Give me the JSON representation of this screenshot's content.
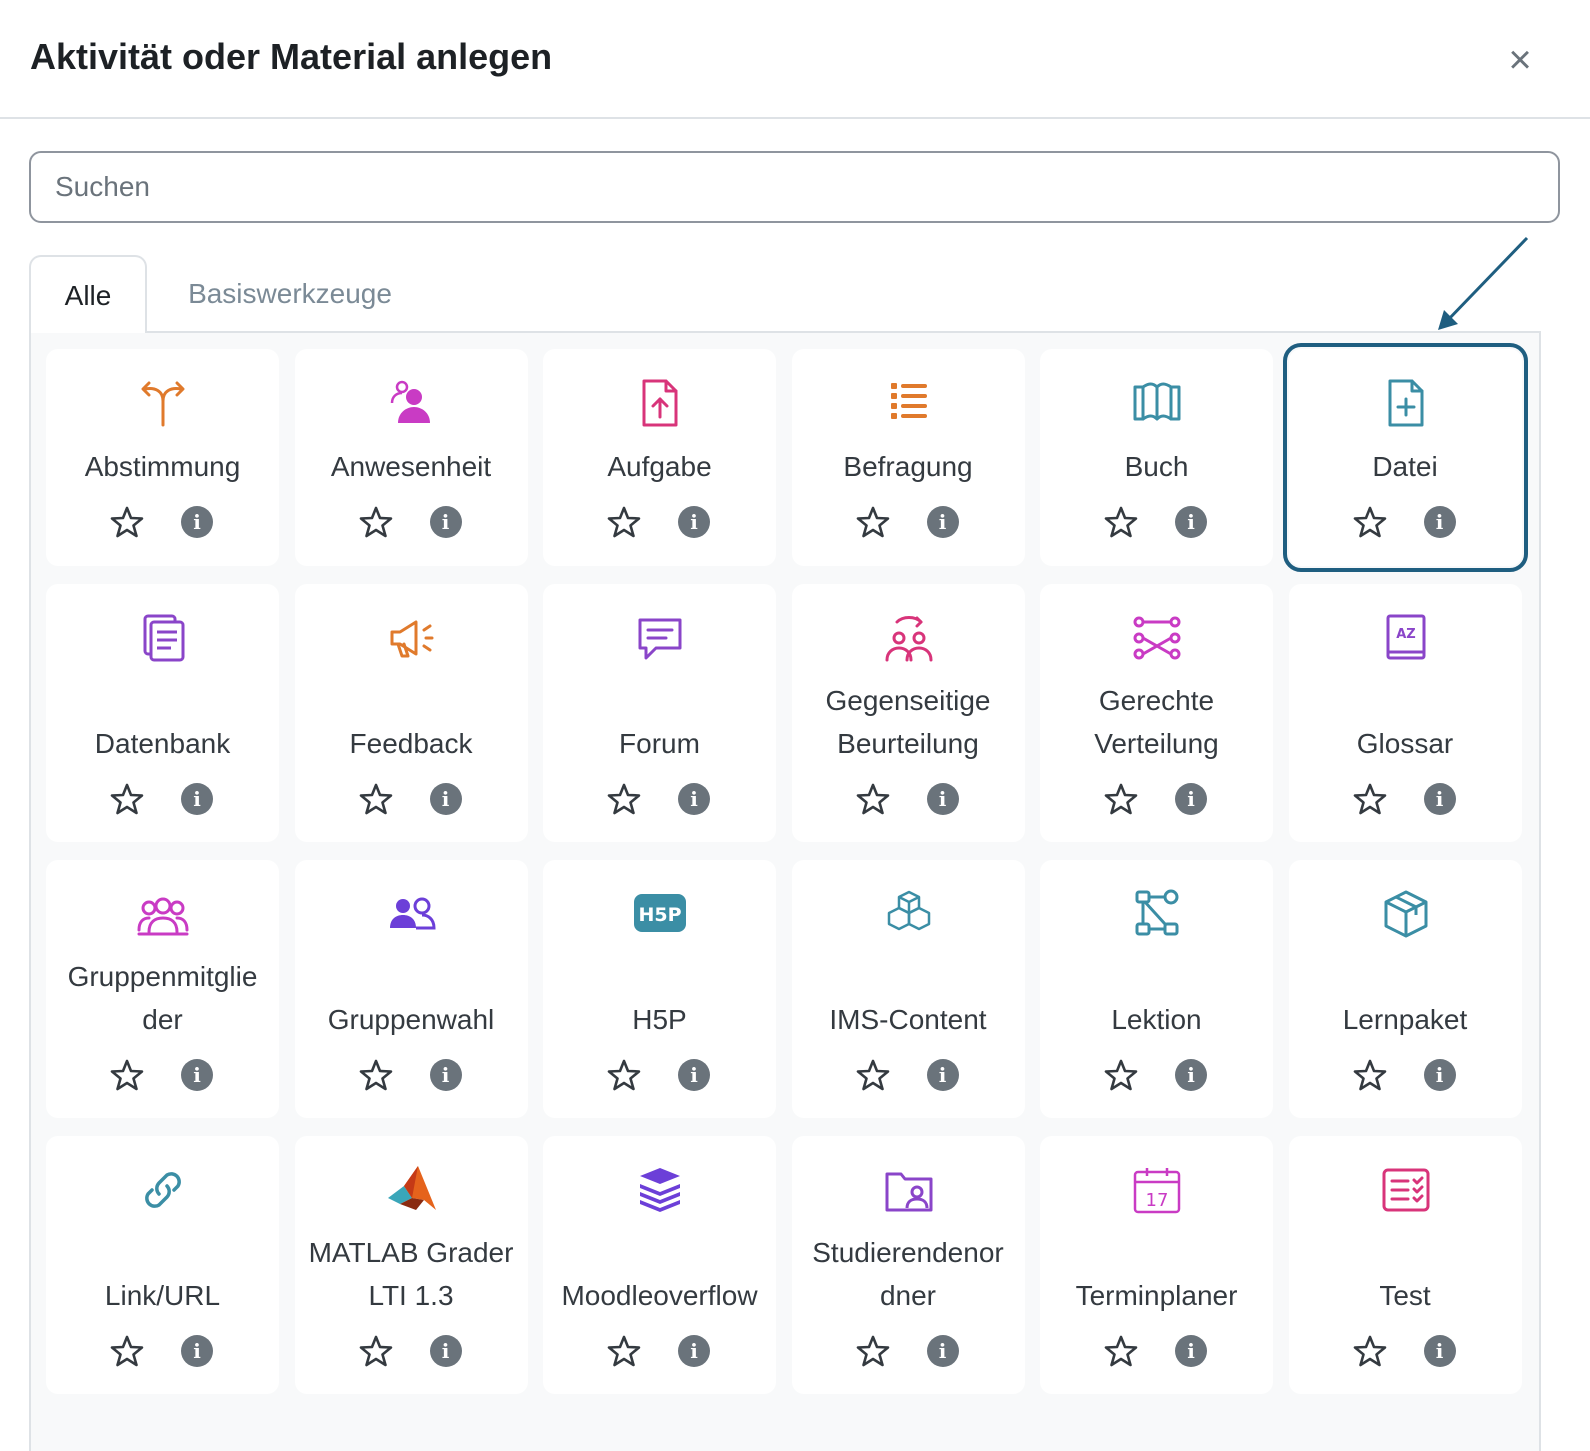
{
  "dialog": {
    "title": "Aktivität oder Material anlegen",
    "close_symbol": "×"
  },
  "search": {
    "placeholder": "Suchen",
    "value": ""
  },
  "tabs": [
    {
      "label": "Alle",
      "active": true
    },
    {
      "label": "Basiswerkzeuge",
      "active": false
    }
  ],
  "info_symbol": "i",
  "colors": {
    "accent": "#1f5e80",
    "orange": "#e07a2c",
    "magenta": "#c93bc4",
    "pink": "#d8347a",
    "teal": "#3b8ea5",
    "purple": "#6c3fd8",
    "violet": "#8a45c9"
  },
  "activities": [
    {
      "label": "Abstimmung",
      "icon": "choice-icon"
    },
    {
      "label": "Anwesenheit",
      "icon": "attendance-icon"
    },
    {
      "label": "Aufgabe",
      "icon": "assignment-upload-icon"
    },
    {
      "label": "Befragung",
      "icon": "survey-list-icon"
    },
    {
      "label": "Buch",
      "icon": "book-icon"
    },
    {
      "label": "Datei",
      "icon": "file-plus-icon",
      "selected": true
    },
    {
      "label": "Datenbank",
      "icon": "database-icon"
    },
    {
      "label": "Feedback",
      "icon": "megaphone-icon"
    },
    {
      "label": "Forum",
      "icon": "forum-chat-icon"
    },
    {
      "label": "Gegenseitige",
      "label2": "Beurteilung",
      "icon": "peer-review-icon"
    },
    {
      "label": "Gerechte",
      "label2": "Verteilung",
      "icon": "distribution-icon"
    },
    {
      "label": "Glossar",
      "icon": "glossary-icon"
    },
    {
      "label": "Gruppenmitglie",
      "label2": "der",
      "icon": "group-members-icon"
    },
    {
      "label": "Gruppenwahl",
      "icon": "group-choice-icon"
    },
    {
      "label": "H5P",
      "icon": "h5p-icon",
      "icon_text": "H5P"
    },
    {
      "label": "IMS-Content",
      "icon": "ims-cubes-icon"
    },
    {
      "label": "Lektion",
      "icon": "lesson-flow-icon"
    },
    {
      "label": "Lernpaket",
      "icon": "package-box-icon"
    },
    {
      "label": "Link/URL",
      "icon": "link-icon"
    },
    {
      "label": "MATLAB Grader",
      "label2": "LTI 1.3",
      "icon": "matlab-icon"
    },
    {
      "label": "Moodleoverflow",
      "icon": "stack-icon"
    },
    {
      "label": "Studierendenor",
      "label2": "dner",
      "icon": "student-folder-icon"
    },
    {
      "label": "Terminplaner",
      "icon": "calendar-icon",
      "icon_text": "17"
    },
    {
      "label": "Test",
      "icon": "quiz-checklist-icon"
    }
  ]
}
